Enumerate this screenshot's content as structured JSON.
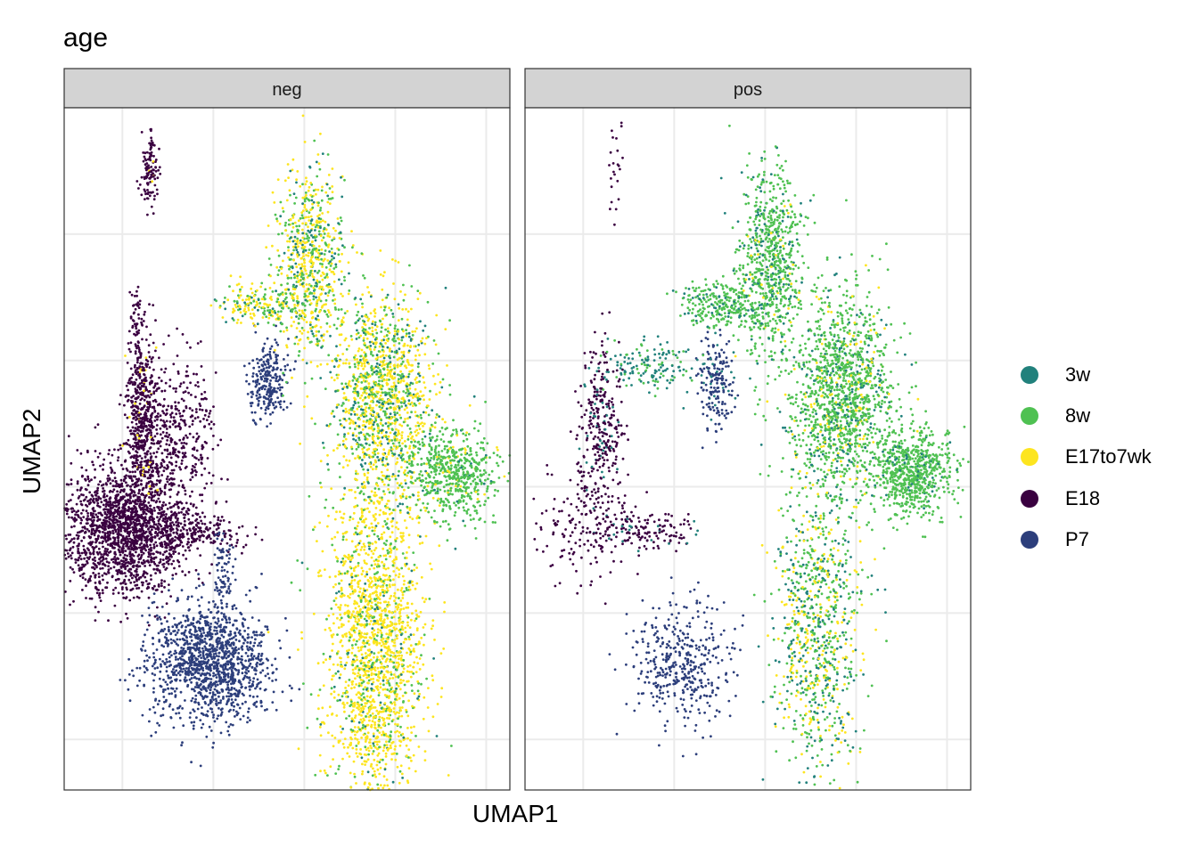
{
  "chart_data": {
    "type": "scatter",
    "title": "age",
    "xlabel": "UMAP1",
    "ylabel": "UMAP2",
    "xlim": [
      -8.2,
      16.3
    ],
    "ylim": [
      -12,
      15
    ],
    "x_gridlines": [
      -5,
      0,
      5,
      10,
      15
    ],
    "y_gridlines": [
      -10,
      -5,
      0,
      5,
      10
    ],
    "tick_labels_shown": false,
    "grid": true,
    "legend_position": "right",
    "legend": [
      {
        "label": "3w",
        "color": "#21817C"
      },
      {
        "label": "8w",
        "color": "#4FC152"
      },
      {
        "label": "E17to7wk",
        "color": "#FDE51F"
      },
      {
        "label": "E18",
        "color": "#3A0140"
      },
      {
        "label": "P7",
        "color": "#2C3E7B"
      }
    ],
    "facets": [
      {
        "name": "neg",
        "clusters": [
          {
            "x": -4.85,
            "y": -1.7,
            "sx": 1.7,
            "sy": 1.3,
            "n": 1800,
            "mix": {
              "E18": 1
            }
          },
          {
            "x": -3.9,
            "y": 2.7,
            "sx": 0.5,
            "sy": 1.6,
            "n": 500,
            "mix": {
              "E18": 0.95,
              "E17to7wk": 0.05
            }
          },
          {
            "x": -2.0,
            "y": 2.2,
            "sx": 1.0,
            "sy": 1.4,
            "n": 350,
            "mix": {
              "E18": 1
            }
          },
          {
            "x": -1.0,
            "y": -1.8,
            "sx": 1.2,
            "sy": 0.35,
            "n": 200,
            "mix": {
              "E18": 1
            }
          },
          {
            "x": -3.5,
            "y": 12.5,
            "sx": 0.25,
            "sy": 0.8,
            "n": 120,
            "mix": {
              "E18": 0.95,
              "E17to7wk": 0.05
            }
          },
          {
            "x": -4.2,
            "y": 6.5,
            "sx": 0.2,
            "sy": 0.8,
            "n": 60,
            "mix": {
              "E18": 1
            }
          },
          {
            "x": -0.3,
            "y": -7.0,
            "sx": 1.6,
            "sy": 1.2,
            "n": 1300,
            "mix": {
              "P7": 1
            }
          },
          {
            "x": 3.0,
            "y": 4.2,
            "sx": 0.5,
            "sy": 0.8,
            "n": 250,
            "mix": {
              "P7": 1
            }
          },
          {
            "x": 0.6,
            "y": -3.5,
            "sx": 0.3,
            "sy": 1.0,
            "n": 80,
            "mix": {
              "P7": 1
            }
          },
          {
            "x": 5.3,
            "y": 8.8,
            "sx": 0.9,
            "sy": 1.9,
            "n": 700,
            "mix": {
              "E17to7wk": 0.5,
              "8w": 0.35,
              "3w": 0.15
            }
          },
          {
            "x": 2.6,
            "y": 7.2,
            "sx": 1.1,
            "sy": 0.45,
            "n": 200,
            "mix": {
              "E17to7wk": 0.5,
              "8w": 0.35,
              "3w": 0.15
            }
          },
          {
            "x": 9.3,
            "y": 3.6,
            "sx": 1.4,
            "sy": 2.0,
            "n": 1300,
            "mix": {
              "E17to7wk": 0.5,
              "8w": 0.35,
              "3w": 0.15
            }
          },
          {
            "x": 13.0,
            "y": 0.6,
            "sx": 1.2,
            "sy": 0.9,
            "n": 600,
            "mix": {
              "8w": 0.9,
              "E17to7wk": 0.05,
              "3w": 0.05
            }
          },
          {
            "x": 8.9,
            "y": -6.3,
            "sx": 1.3,
            "sy": 3.3,
            "n": 1900,
            "mix": {
              "E17to7wk": 0.75,
              "8w": 0.2,
              "3w": 0.05
            }
          }
        ]
      },
      {
        "name": "pos",
        "clusters": [
          {
            "x": -4.0,
            "y": 2.5,
            "sx": 0.6,
            "sy": 1.6,
            "n": 300,
            "mix": {
              "E18": 0.85,
              "3w": 0.15
            }
          },
          {
            "x": -4.8,
            "y": -1.5,
            "sx": 1.6,
            "sy": 1.3,
            "n": 200,
            "mix": {
              "E18": 1
            }
          },
          {
            "x": -1.0,
            "y": -1.8,
            "sx": 1.2,
            "sy": 0.4,
            "n": 120,
            "mix": {
              "E18": 0.9,
              "3w": 0.1
            }
          },
          {
            "x": -3.3,
            "y": 12.5,
            "sx": 0.25,
            "sy": 1.2,
            "n": 25,
            "mix": {
              "E18": 1
            }
          },
          {
            "x": 2.3,
            "y": 4.0,
            "sx": 0.5,
            "sy": 0.9,
            "n": 180,
            "mix": {
              "P7": 0.9,
              "3w": 0.1
            }
          },
          {
            "x": -1.3,
            "y": 4.8,
            "sx": 1.3,
            "sy": 0.5,
            "n": 150,
            "mix": {
              "3w": 0.7,
              "8w": 0.3
            }
          },
          {
            "x": 0.5,
            "y": -7.0,
            "sx": 1.4,
            "sy": 1.3,
            "n": 400,
            "mix": {
              "P7": 1
            }
          },
          {
            "x": 5.3,
            "y": 8.8,
            "sx": 0.9,
            "sy": 1.9,
            "n": 800,
            "mix": {
              "8w": 0.8,
              "3w": 0.15,
              "E17to7wk": 0.05
            }
          },
          {
            "x": 2.5,
            "y": 7.2,
            "sx": 1.1,
            "sy": 0.45,
            "n": 250,
            "mix": {
              "8w": 0.8,
              "3w": 0.2
            }
          },
          {
            "x": 9.3,
            "y": 3.6,
            "sx": 1.4,
            "sy": 2.0,
            "n": 1400,
            "mix": {
              "8w": 0.75,
              "3w": 0.15,
              "E17to7wk": 0.1
            }
          },
          {
            "x": 13.0,
            "y": 0.6,
            "sx": 1.2,
            "sy": 0.9,
            "n": 700,
            "mix": {
              "8w": 0.95,
              "3w": 0.05
            }
          },
          {
            "x": 7.8,
            "y": -5.5,
            "sx": 1.2,
            "sy": 3.0,
            "n": 900,
            "mix": {
              "8w": 0.45,
              "3w": 0.25,
              "E17to7wk": 0.3
            }
          }
        ]
      }
    ]
  }
}
